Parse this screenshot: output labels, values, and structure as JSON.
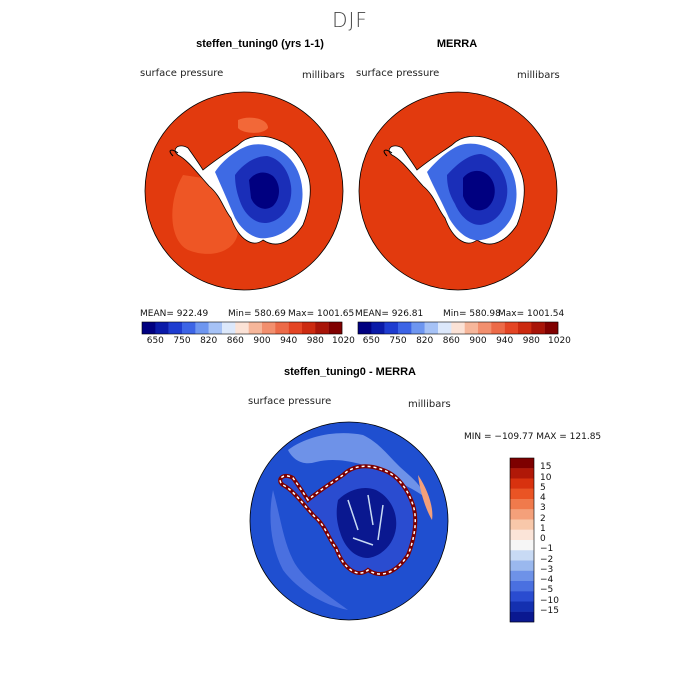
{
  "season_title": "DJF",
  "panels": {
    "model": {
      "title": "steffen_tuning0 (yrs 1-1)",
      "variable_label": "surface pressure",
      "units_label": "millibars",
      "mean": "MEAN= 922.49",
      "min": "Min= 580.69",
      "max": "Max= 1001.65"
    },
    "obs": {
      "title": "MERRA",
      "variable_label": "surface pressure",
      "units_label": "millibars",
      "mean": "MEAN= 926.81",
      "min": "Min= 580.98",
      "max": "Max= 1001.54"
    },
    "diff": {
      "title": "steffen_tuning0 - MERRA",
      "variable_label": "surface pressure",
      "units_label": "millibars",
      "minmax": "MIN = −109.77  MAX = 121.85"
    }
  },
  "abs_colorbar": {
    "tick_labels": [
      "650",
      "750",
      "820",
      "860",
      "900",
      "940",
      "980",
      "1020"
    ],
    "colors": [
      "#000080",
      "#0a1aa8",
      "#1e3cd0",
      "#3c64e6",
      "#6e96f0",
      "#a6c2f6",
      "#dce8fb",
      "#fbe2d6",
      "#f6b69a",
      "#f28f6e",
      "#ec6a48",
      "#e44524",
      "#cc2a10",
      "#a81408",
      "#800000"
    ]
  },
  "diff_colorbar": {
    "labels": [
      "15",
      "10",
      "5",
      "4",
      "3",
      "2",
      "1",
      "0",
      "−1",
      "−2",
      "−3",
      "−4",
      "−5",
      "−10",
      "−15"
    ],
    "colors": [
      "#7d0000",
      "#b01808",
      "#d8320f",
      "#ea5424",
      "#f07a4c",
      "#f4a07a",
      "#f8c8aa",
      "#fbe4d8",
      "#f6f6f6",
      "#c8daf4",
      "#9ab8ee",
      "#6e92e8",
      "#4a70e0",
      "#2a4cd0",
      "#1430b0",
      "#0a1890"
    ]
  },
  "colors": {
    "high_pressure": "#e03a10",
    "high_pressure_light": "#ef5a2a",
    "low_pressure": "#000080",
    "diff_background": "#1f4fd0"
  }
}
